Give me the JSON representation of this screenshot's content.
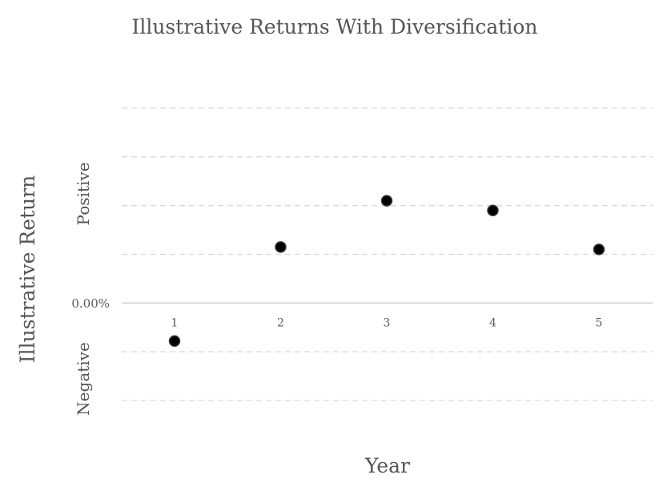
{
  "chart_data": {
    "type": "scatter",
    "title": "Illustrative Returns With Diversification",
    "xlabel": "Year",
    "ylabel": "Illustrative Return",
    "y_positive_label": "Positive",
    "y_negative_label": "Negative",
    "y_zero_label": "0.00%",
    "x": [
      1,
      2,
      3,
      4,
      5
    ],
    "x_tick_labels": [
      "1",
      "2",
      "3",
      "4",
      "5"
    ],
    "y": [
      -0.78,
      1.15,
      2.1,
      1.9,
      1.1
    ],
    "ylim": [
      -2,
      4
    ],
    "grid": true,
    "legend": false,
    "colors": {
      "marker": "#000000",
      "grid": "#d9d9d9",
      "text": "#555555"
    }
  }
}
